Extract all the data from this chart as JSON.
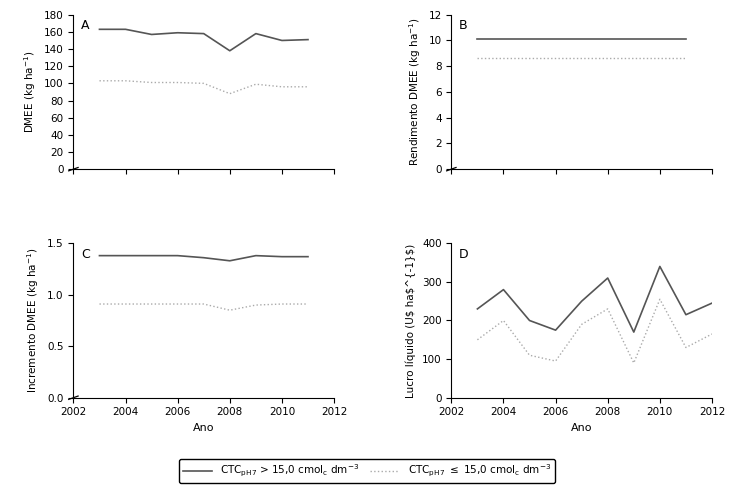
{
  "years": [
    2003,
    2004,
    2005,
    2006,
    2007,
    2008,
    2009,
    2010,
    2011
  ],
  "A_high": [
    163,
    163,
    157,
    159,
    158,
    138,
    158,
    150,
    151
  ],
  "A_low": [
    103,
    103,
    101,
    101,
    100,
    88,
    99,
    96,
    96
  ],
  "B_high": [
    10.1,
    10.1,
    10.1,
    10.1,
    10.1,
    10.1,
    10.1,
    10.1,
    10.1
  ],
  "B_low": [
    8.6,
    8.6,
    8.6,
    8.6,
    8.6,
    8.6,
    8.6,
    8.6,
    8.6
  ],
  "C_high": [
    1.38,
    1.38,
    1.38,
    1.38,
    1.36,
    1.33,
    1.38,
    1.37,
    1.37
  ],
  "C_low": [
    0.91,
    0.91,
    0.91,
    0.91,
    0.91,
    0.85,
    0.9,
    0.91,
    0.91
  ],
  "D_high": [
    230,
    280,
    200,
    175,
    250,
    310,
    170,
    340,
    215,
    245
  ],
  "D_low": [
    150,
    200,
    110,
    95,
    190,
    230,
    90,
    255,
    130,
    165
  ],
  "D_years": [
    2003,
    2004,
    2005,
    2006,
    2007,
    2008,
    2009,
    2010,
    2011,
    2012
  ],
  "ylabel_A": "DMEE (kg ha-1)",
  "ylabel_B": "Rendimento DMEE (kg ha-1)",
  "ylabel_C": "Incremento DMEE (kg ha-1)",
  "ylabel_D": "Lucro liquido (U$ ha-1)",
  "xlabel": "Ano",
  "label_A": "A",
  "label_B": "B",
  "label_C": "C",
  "label_D": "D",
  "color_high": "#555555",
  "color_low": "#aaaaaa",
  "A_ylim": [
    0,
    180
  ],
  "A_yticks": [
    0,
    20,
    40,
    60,
    80,
    100,
    120,
    140,
    160,
    180
  ],
  "B_ylim": [
    0,
    12
  ],
  "B_yticks": [
    0,
    2,
    4,
    6,
    8,
    10,
    12
  ],
  "C_ylim": [
    0.0,
    1.5
  ],
  "C_yticks": [
    0.0,
    0.5,
    1.0,
    1.5
  ],
  "D_ylim": [
    0,
    400
  ],
  "D_yticks": [
    0,
    100,
    200,
    300,
    400
  ],
  "xmin": 2002,
  "xmax": 2012,
  "xticks": [
    2002,
    2004,
    2006,
    2008,
    2010,
    2012
  ]
}
